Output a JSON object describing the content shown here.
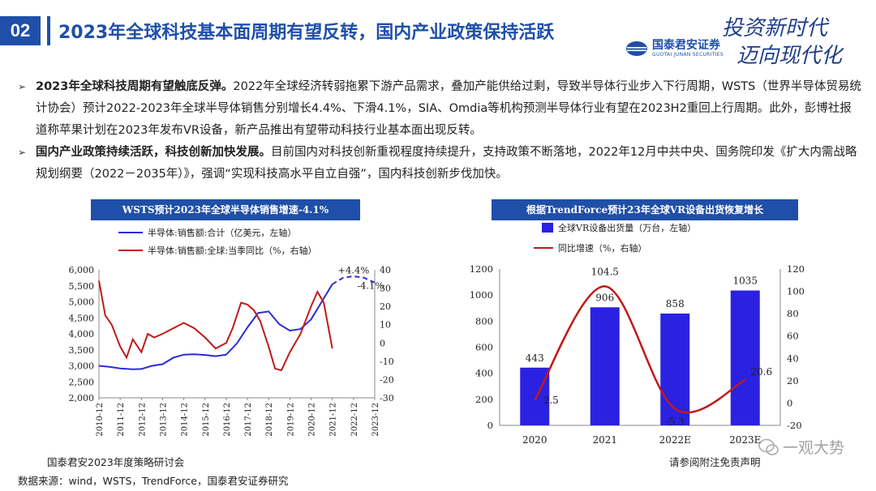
{
  "header": {
    "section_number": "02",
    "title": "2023年全球科技基本面周期有望反转，国内产业政策保持活跃",
    "logo_cn": "国泰君安证券",
    "logo_en": "GUOTAI JUNAN SECURITIES",
    "slogan_line1": "投资新时代",
    "slogan_line2": "迈向现代化"
  },
  "bullets": [
    {
      "lead": "2023年全球科技周期有望触底反弹。",
      "text": "2022年全球经济转弱拖累下游产品需求，叠加产能供给过剩，导致半导体行业步入下行周期，WSTS（世界半导体贸易统计协会）预计2022-2023年全球半导体销售分别增长4.4%、下滑4.1%，SIA、Omdia等机构预测半导体行业有望在2023H2重回上行周期。此外，彭博社报道称苹果计划在2023年发布VR设备，新产品推出有望带动科技行业基本面出现反转。"
    },
    {
      "lead": "国内产业政策持续活跃，科技创新加快发展。",
      "text": "目前国内对科技创新重视程度持续提升，支持政策不断落地，2022年12月中共中央、国务院印发《扩大内需战略规划纲要（2022－2035年）》，强调“实现科技高水平自立自强”，国内科技创新步伐加快。"
    }
  ],
  "chart_data": [
    {
      "type": "line",
      "title": "WSTS预计2023年全球半导体销售增速-4.1%",
      "x": [
        "2010-12",
        "2011-12",
        "2012-12",
        "2013-12",
        "2014-12",
        "2015-12",
        "2016-12",
        "2017-12",
        "2018-12",
        "2019-12",
        "2020-12",
        "2021-12",
        "2022-12",
        "2023-12"
      ],
      "ylim_left": [
        2000,
        6000
      ],
      "ylim_right": [
        -30,
        40
      ],
      "left_ticks": [
        "6,000",
        "5,500",
        "5,000",
        "4,500",
        "4,000",
        "3,500",
        "3,000",
        "2,500",
        "2,000"
      ],
      "right_ticks": [
        "40",
        "30",
        "20",
        "10",
        "0",
        "-10",
        "-20",
        "-30"
      ],
      "series": [
        {
          "name": "半导体:销售额:合计（亿美元，左轴）",
          "color": "#2b2bd9",
          "axis": "left",
          "points": [
            [
              0,
              3000
            ],
            [
              0.5,
              2970
            ],
            [
              1,
              2920
            ],
            [
              1.6,
              2890
            ],
            [
              2,
              2900
            ],
            [
              2.5,
              3000
            ],
            [
              3,
              3050
            ],
            [
              3.5,
              3250
            ],
            [
              4,
              3350
            ],
            [
              4.5,
              3360
            ],
            [
              5,
              3340
            ],
            [
              5.5,
              3300
            ],
            [
              6,
              3350
            ],
            [
              6.5,
              3700
            ],
            [
              7,
              4200
            ],
            [
              7.5,
              4650
            ],
            [
              8,
              4700
            ],
            [
              8.5,
              4300
            ],
            [
              9,
              4100
            ],
            [
              9.5,
              4150
            ],
            [
              10,
              4450
            ],
            [
              10.5,
              5000
            ],
            [
              11,
              5550
            ]
          ],
          "projection": [
            [
              11,
              5550
            ],
            [
              11.5,
              5750
            ],
            [
              12,
              5800
            ],
            [
              12.5,
              5750
            ],
            [
              13,
              5600
            ]
          ],
          "annotations": [
            {
              "label": "+4.4%",
              "x": 12,
              "y": 5880
            },
            {
              "label": "-4.1%",
              "x": 12.8,
              "y": 5400
            }
          ]
        },
        {
          "name": "半导体:销售额:全球:当季同比（%，右轴）",
          "color": "#c01a1a",
          "axis": "right",
          "points": [
            [
              0,
              34
            ],
            [
              0.3,
              15
            ],
            [
              0.6,
              10
            ],
            [
              1,
              -2
            ],
            [
              1.3,
              -8
            ],
            [
              1.6,
              2
            ],
            [
              2,
              -5
            ],
            [
              2.3,
              5
            ],
            [
              2.6,
              3
            ],
            [
              3,
              5
            ],
            [
              3.5,
              8
            ],
            [
              4,
              11
            ],
            [
              4.5,
              8
            ],
            [
              5,
              3
            ],
            [
              5.5,
              -3
            ],
            [
              6,
              0
            ],
            [
              6.3,
              8
            ],
            [
              6.7,
              22
            ],
            [
              7,
              21
            ],
            [
              7.3,
              18
            ],
            [
              7.6,
              12
            ],
            [
              8,
              -2
            ],
            [
              8.3,
              -14
            ],
            [
              8.6,
              -15
            ],
            [
              9,
              -5
            ],
            [
              9.5,
              5
            ],
            [
              10,
              20
            ],
            [
              10.3,
              28
            ],
            [
              10.6,
              22
            ],
            [
              11,
              -3
            ]
          ]
        }
      ]
    },
    {
      "type": "bar",
      "title": "根据TrendForce预计23年全球VR设备出货恢复增长",
      "categories": [
        "2020",
        "2021",
        "2022E",
        "2023E"
      ],
      "ylim_left": [
        0,
        1200
      ],
      "ylim_right": [
        -20,
        120
      ],
      "left_ticks": [
        "1200",
        "1000",
        "800",
        "600",
        "400",
        "200",
        "0"
      ],
      "right_ticks": [
        "120",
        "100",
        "80",
        "60",
        "40",
        "20",
        "0",
        "-20"
      ],
      "series": [
        {
          "name": "全球VR设备出货量（万台，左轴）",
          "type": "bar",
          "color": "#2b21e0",
          "values": [
            443,
            906,
            858,
            1035
          ]
        },
        {
          "name": "同比增速（%，右轴）",
          "type": "line",
          "color": "#c01a1a",
          "values": [
            2.5,
            104.5,
            -5.3,
            20.6
          ]
        }
      ]
    }
  ],
  "footer": {
    "event": "国泰君安2023年度策略研讨会",
    "source": "数据来源：wind，WSTS，TrendForce，国泰君安证券研究",
    "disclaimer": "请参阅附注免责声明",
    "watermark": "一观大势"
  }
}
